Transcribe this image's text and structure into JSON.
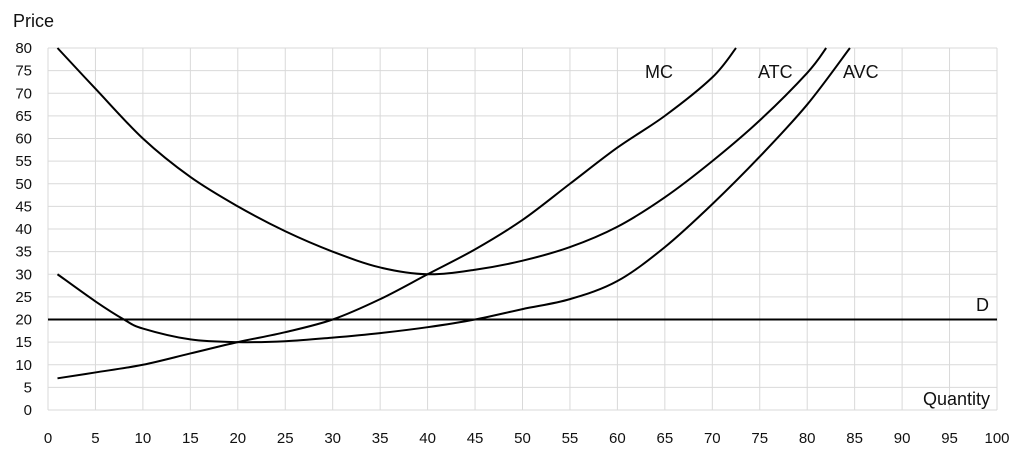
{
  "chart_data": {
    "type": "line",
    "title": "",
    "xlabel": "Quantity",
    "ylabel": "Price",
    "xlim": [
      0,
      100
    ],
    "ylim": [
      0,
      80
    ],
    "x_ticks": [
      0,
      5,
      10,
      15,
      20,
      25,
      30,
      35,
      40,
      45,
      50,
      55,
      60,
      65,
      70,
      75,
      80,
      85,
      90,
      95,
      100
    ],
    "y_ticks": [
      0,
      5,
      10,
      15,
      20,
      25,
      30,
      35,
      40,
      45,
      50,
      55,
      60,
      65,
      70,
      75,
      80
    ],
    "grid": true,
    "legend": "none",
    "series": [
      {
        "name": "MC",
        "color": "#000000",
        "x": [
          1,
          5,
          10,
          15,
          20,
          25,
          30,
          35,
          40,
          45,
          50,
          55,
          60,
          65,
          70,
          72.5
        ],
        "y": [
          7,
          8.3,
          10,
          12.5,
          15,
          17.2,
          20,
          24.5,
          30,
          35.5,
          42,
          50,
          58,
          65,
          73.5,
          80
        ]
      },
      {
        "name": "ATC",
        "color": "#000000",
        "x": [
          1,
          5,
          10,
          15,
          20,
          25,
          30,
          35,
          40,
          45,
          50,
          55,
          60,
          65,
          70,
          75,
          80,
          82
        ],
        "y": [
          80,
          71,
          60,
          51.5,
          45,
          39.5,
          35,
          31.5,
          30,
          31,
          33,
          36,
          40.5,
          47,
          55,
          64,
          74.5,
          80
        ]
      },
      {
        "name": "AVC",
        "color": "#000000",
        "x": [
          1,
          5,
          8,
          10,
          15,
          20,
          25,
          30,
          35,
          40,
          45,
          50,
          55,
          60,
          65,
          70,
          75,
          80,
          84.5
        ],
        "y": [
          30,
          24,
          20,
          18,
          15.6,
          15,
          15.2,
          16,
          17,
          18.3,
          20,
          22.3,
          24.5,
          28.5,
          36,
          45.5,
          56,
          67.5,
          80
        ]
      },
      {
        "name": "D",
        "color": "#000000",
        "x": [
          0,
          100
        ],
        "y": [
          20,
          20
        ]
      }
    ],
    "annotations": [
      {
        "text": "MC",
        "series": "MC"
      },
      {
        "text": "ATC",
        "series": "ATC"
      },
      {
        "text": "AVC",
        "series": "AVC"
      },
      {
        "text": "D",
        "series": "D"
      }
    ]
  }
}
